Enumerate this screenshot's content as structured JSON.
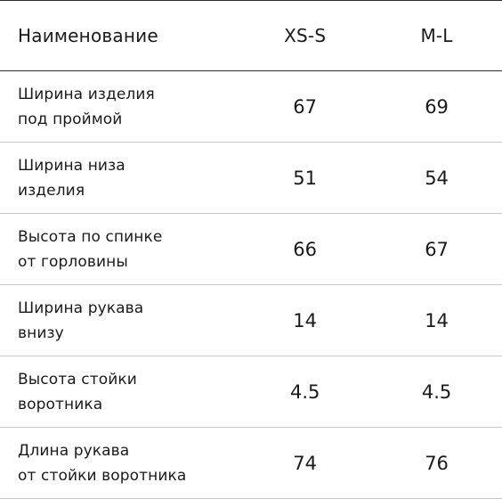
{
  "table": {
    "headers": {
      "name": "Наименование",
      "size_1": "XS-S",
      "size_2": "M-L"
    },
    "rows": [
      {
        "name": "Ширина изделия\nпод проймой",
        "size_1": "67",
        "size_2": "69"
      },
      {
        "name": "Ширина низа\nизделия",
        "size_1": "51",
        "size_2": "54"
      },
      {
        "name": "Высота по спинке\nот горловины",
        "size_1": "66",
        "size_2": "67"
      },
      {
        "name": "Ширина рукава\nвнизу",
        "size_1": "14",
        "size_2": "14"
      },
      {
        "name": "Высота стойки\nворотника",
        "size_1": "4.5",
        "size_2": "4.5"
      },
      {
        "name": "Длина рукава\nот стойки воротника",
        "size_1": "74",
        "size_2": "76"
      }
    ]
  }
}
